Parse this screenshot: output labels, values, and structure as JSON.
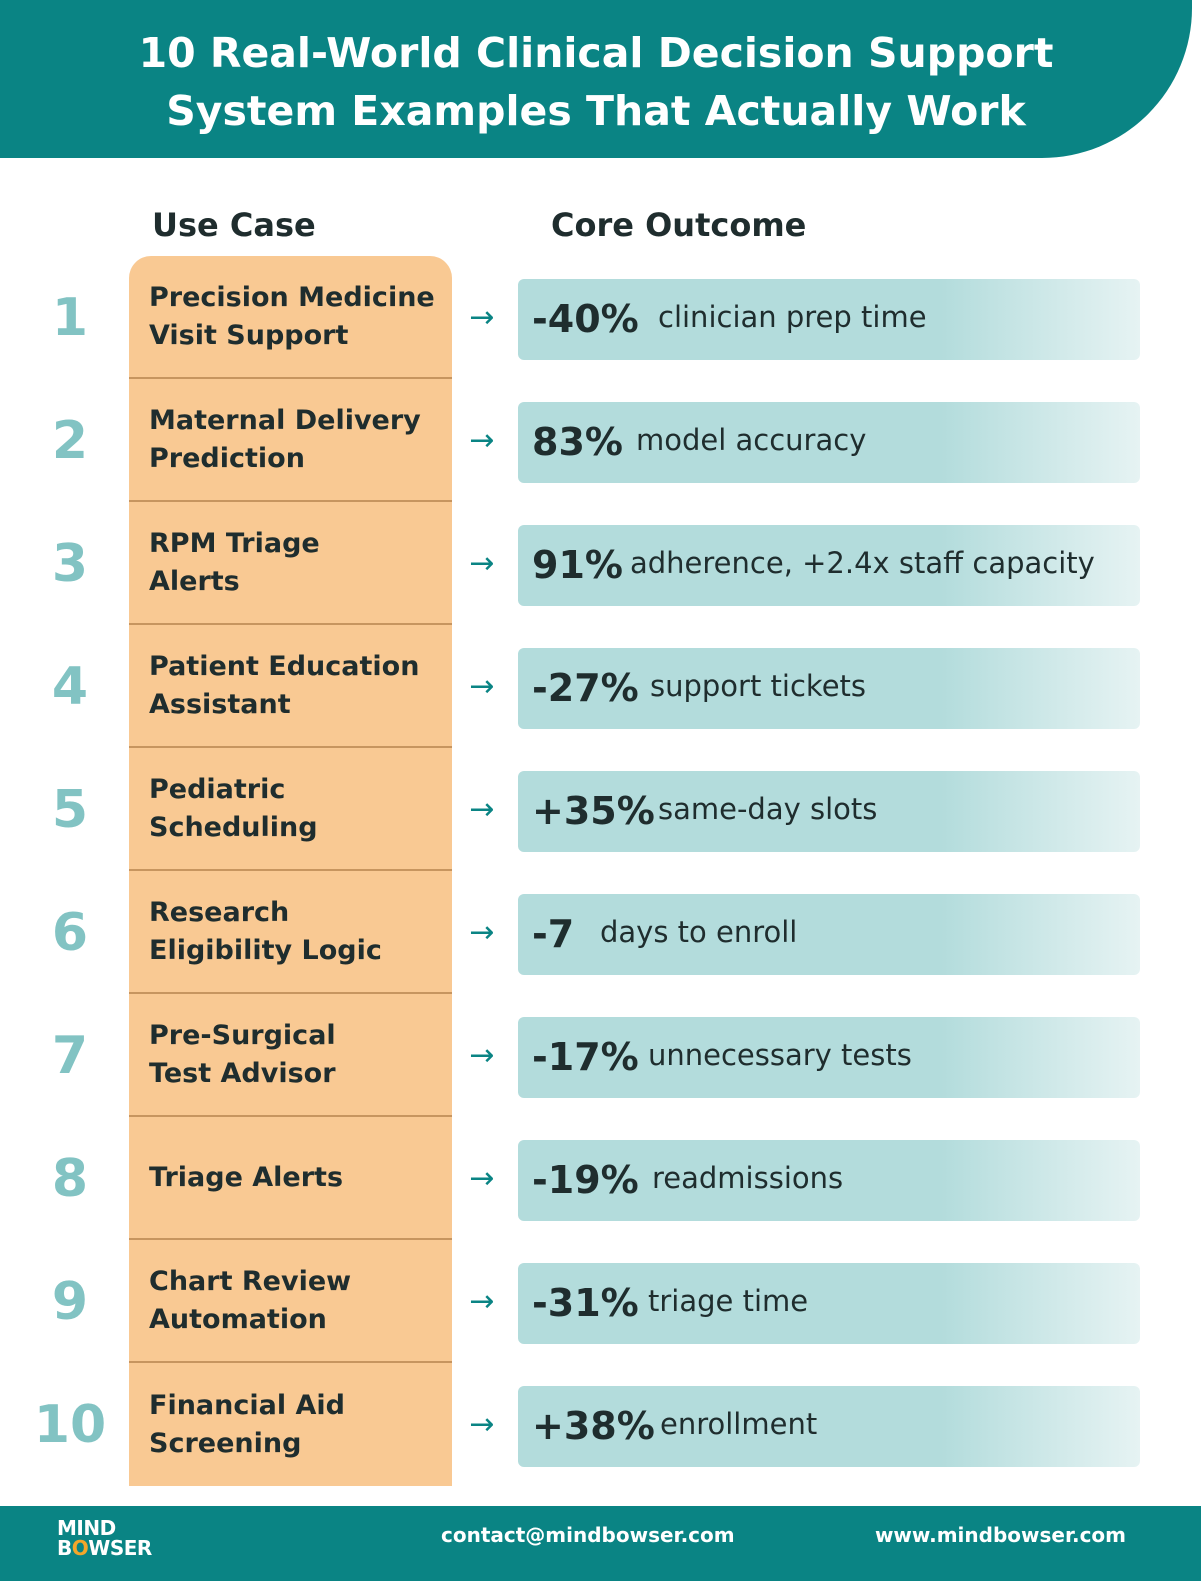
{
  "header": {
    "title_line1": "10 Real-World Clinical Decision Support",
    "title_line2": "System Examples That Actually Work"
  },
  "columns": {
    "use_case": "Use Case",
    "core_outcome": "Core Outcome"
  },
  "rows": [
    {
      "number": "1",
      "use_case_line1": "Precision Medicine",
      "use_case_line2": "Visit Support",
      "metric": "-40%",
      "description": "clinician prep time"
    },
    {
      "number": "2",
      "use_case_line1": "Maternal Delivery",
      "use_case_line2": "Prediction",
      "metric": "83%",
      "description": "model accuracy"
    },
    {
      "number": "3",
      "use_case_line1": "RPM Triage",
      "use_case_line2": "Alerts",
      "metric": "91%",
      "description": "adherence, +2.4x staff capacity"
    },
    {
      "number": "4",
      "use_case_line1": "Patient Education",
      "use_case_line2": "Assistant",
      "metric": "-27%",
      "description": "support tickets"
    },
    {
      "number": "5",
      "use_case_line1": "Pediatric",
      "use_case_line2": "Scheduling",
      "metric": "+35%",
      "description": "same-day slots"
    },
    {
      "number": "6",
      "use_case_line1": "Research",
      "use_case_line2": "Eligibility Logic",
      "metric": "-7",
      "description": "days to enroll"
    },
    {
      "number": "7",
      "use_case_line1": "Pre-Surgical",
      "use_case_line2": "Test Advisor",
      "metric": "-17%",
      "description": "unnecessary tests"
    },
    {
      "number": "8",
      "use_case_line1": "Triage Alerts",
      "use_case_line2": "",
      "metric": "-19%",
      "description": "readmissions"
    },
    {
      "number": "9",
      "use_case_line1": "Chart Review",
      "use_case_line2": "Automation",
      "metric": "-31%",
      "description": "triage time"
    },
    {
      "number": "10",
      "use_case_line1": "Financial Aid",
      "use_case_line2": "Screening",
      "metric": "+38%",
      "description": "enrollment"
    }
  ],
  "arrow_glyph": "→",
  "footer": {
    "logo_line1": "MIND",
    "logo_b": "B",
    "logo_o": "O",
    "logo_rest": "WSER",
    "contact": "contact@mindbowser.com",
    "website": "www.mindbowser.com"
  },
  "colors": {
    "teal": "#0a8484",
    "number": "#82c3c3",
    "use_case_bg": "#f9c993",
    "outcome_bg": "#b3dcdc"
  }
}
